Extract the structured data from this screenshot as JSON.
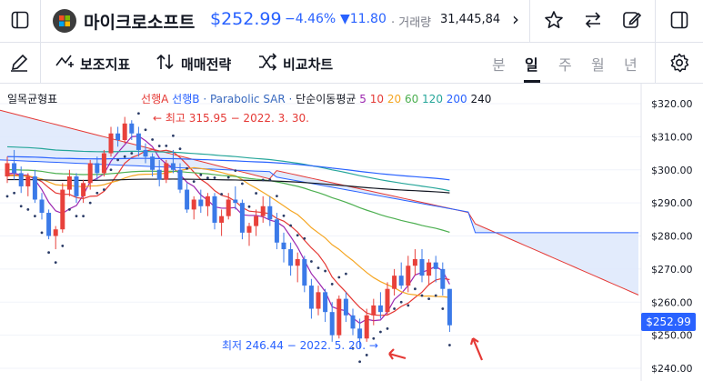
{
  "header": {
    "title": "마이크로소프트",
    "price": "$252.99",
    "change_pct": "−4.46%",
    "change_abs": "▼11.80",
    "volume_label": "· 거래량",
    "volume_value": "31,445,84",
    "more_chevron": "›"
  },
  "toolbar": {
    "indicators_label": "보조지표",
    "strategy_label": "매매전략",
    "compare_label": "비교차트",
    "periods": [
      "분",
      "일",
      "주",
      "월",
      "년"
    ],
    "active_period": "일"
  },
  "legend": {
    "ichimoku": "일목균형표",
    "leadA": "선행A",
    "leadB": "선행B",
    "psar": "· Parabolic SAR ·",
    "ma_label": "단순이동평균",
    "ma5": "5",
    "ma10": "10",
    "ma20": "20",
    "ma60": "60",
    "ma120": "120",
    "ma200": "200",
    "ma240": "240"
  },
  "annotations": {
    "high": "← 최고 315.95 − 2022. 3. 30.",
    "low": "최저 246.44 − 2022. 5. 20. →"
  },
  "price_axis": {
    "ticks": [
      "$320.00",
      "$310.00",
      "$300.00",
      "$290.00",
      "$280.00",
      "$270.00",
      "$260.00",
      "$250.00",
      "$240.00"
    ],
    "current": "$252.99"
  },
  "colors": {
    "up": "#e8413b",
    "down": "#3b7ae8",
    "accent": "#2962ff",
    "ma5": "#9c27b0",
    "ma10": "#e53935",
    "ma20": "#f5a623",
    "ma60": "#4caf50",
    "ma120": "#26a69a",
    "ma200": "#2962ff",
    "ma240": "#131722"
  },
  "chart_data": {
    "type": "candlestick",
    "ylim": [
      238,
      327
    ],
    "ohlc": [
      [
        298,
        304,
        296,
        302
      ],
      [
        302,
        306,
        297,
        299
      ],
      [
        299,
        301,
        293,
        295
      ],
      [
        295,
        299,
        292,
        298
      ],
      [
        298,
        300,
        290,
        291
      ],
      [
        291,
        293,
        285,
        287
      ],
      [
        287,
        288,
        279,
        280
      ],
      [
        280,
        283,
        276,
        282
      ],
      [
        282,
        296,
        281,
        294
      ],
      [
        294,
        300,
        292,
        298
      ],
      [
        298,
        299,
        290,
        292
      ],
      [
        292,
        297,
        290,
        296
      ],
      [
        296,
        303,
        294,
        302
      ],
      [
        302,
        304,
        297,
        299
      ],
      [
        299,
        306,
        298,
        305
      ],
      [
        305,
        313,
        304,
        311
      ],
      [
        311,
        313,
        307,
        309
      ],
      [
        309,
        316,
        308,
        314
      ],
      [
        314,
        315,
        309,
        311
      ],
      [
        311,
        313,
        304,
        306
      ],
      [
        306,
        308,
        302,
        304
      ],
      [
        304,
        305,
        298,
        300
      ],
      [
        300,
        303,
        295,
        297
      ],
      [
        297,
        303,
        296,
        302
      ],
      [
        302,
        306,
        299,
        300
      ],
      [
        300,
        302,
        293,
        294
      ],
      [
        294,
        296,
        287,
        288
      ],
      [
        288,
        292,
        285,
        291
      ],
      [
        291,
        294,
        287,
        289
      ],
      [
        289,
        293,
        286,
        292
      ],
      [
        292,
        293,
        282,
        284
      ],
      [
        284,
        288,
        280,
        286
      ],
      [
        286,
        293,
        285,
        291
      ],
      [
        291,
        295,
        288,
        290
      ],
      [
        290,
        291,
        279,
        281
      ],
      [
        281,
        284,
        277,
        283
      ],
      [
        283,
        288,
        280,
        286
      ],
      [
        286,
        292,
        284,
        289
      ],
      [
        289,
        292,
        283,
        285
      ],
      [
        285,
        287,
        276,
        278
      ],
      [
        278,
        281,
        272,
        276
      ],
      [
        276,
        278,
        268,
        271
      ],
      [
        271,
        275,
        266,
        273
      ],
      [
        273,
        274,
        263,
        265
      ],
      [
        265,
        267,
        255,
        258
      ],
      [
        258,
        265,
        256,
        263
      ],
      [
        263,
        264,
        254,
        257
      ],
      [
        257,
        260,
        248,
        250
      ],
      [
        250,
        262,
        249,
        261
      ],
      [
        261,
        263,
        254,
        256
      ],
      [
        256,
        258,
        250,
        252
      ],
      [
        252,
        255,
        246,
        249
      ],
      [
        249,
        258,
        248,
        256
      ],
      [
        256,
        261,
        253,
        259
      ],
      [
        259,
        263,
        255,
        257
      ],
      [
        257,
        266,
        256,
        264
      ],
      [
        264,
        270,
        262,
        268
      ],
      [
        268,
        272,
        264,
        265
      ],
      [
        265,
        274,
        263,
        271
      ],
      [
        271,
        276,
        268,
        273
      ],
      [
        273,
        276,
        266,
        268
      ],
      [
        268,
        273,
        265,
        272
      ],
      [
        272,
        274,
        266,
        270
      ],
      [
        270,
        272,
        262,
        264
      ],
      [
        264,
        264,
        251,
        253
      ]
    ]
  }
}
